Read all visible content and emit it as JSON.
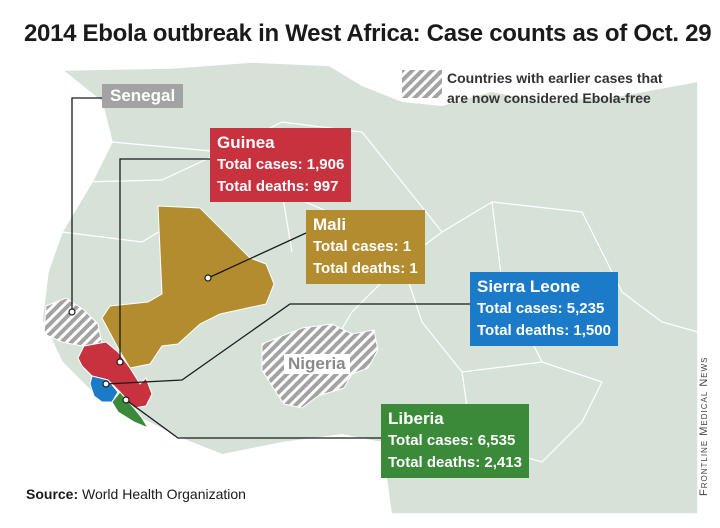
{
  "title": "2014 Ebola outbreak in West Africa: Case counts as of Oct. 29",
  "legend": {
    "line1": "Countries with earlier cases that",
    "line2": "are now considered Ebola-free",
    "pattern_color": "#a3a3a3"
  },
  "countries": {
    "senegal": {
      "name": "Senegal",
      "color": "#a3a3a3"
    },
    "nigeria": {
      "name": "Nigeria",
      "color": "#a3a3a3"
    },
    "guinea": {
      "name": "Guinea",
      "cases_text": "Total cases: 1,906",
      "deaths_text": "Total deaths: 997",
      "color": "#c8313e"
    },
    "mali": {
      "name": "Mali",
      "cases_text": "Total cases: 1",
      "deaths_text": "Total deaths: 1",
      "color": "#b38c2f"
    },
    "sierra_leone": {
      "name": "Sierra Leone",
      "cases_text": "Total cases: 5,235",
      "deaths_text": "Total deaths: 1,500",
      "color": "#1c7bc9"
    },
    "liberia": {
      "name": "Liberia",
      "cases_text": "Total cases: 6,535",
      "deaths_text": "Total deaths: 2,413",
      "color": "#3a8a3a"
    }
  },
  "source": {
    "label": "Source:",
    "text": "World Health Organization"
  },
  "credit": "Frontline Medical News",
  "colors": {
    "land": "#d6e2d8",
    "border": "#ffffff",
    "water": "#ffffff"
  }
}
